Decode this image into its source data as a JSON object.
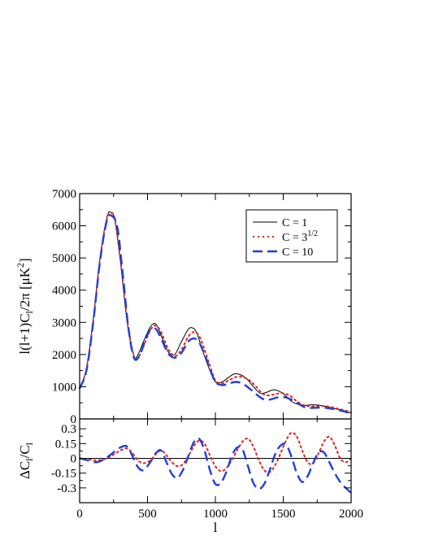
{
  "chart_data": [
    {
      "type": "line",
      "panel": "top",
      "xlabel": "",
      "ylabel_base": "l(l+1)C",
      "ylabel_sub": "l",
      "ylabel_rest": "/2π [μK",
      "ylabel_sup": "2",
      "ylabel_close": "]",
      "xlim": [
        0,
        2000
      ],
      "ylim": [
        0,
        7000
      ],
      "xticks": [
        0,
        500,
        1000,
        1500,
        2000
      ],
      "yticks": [
        0,
        1000,
        2000,
        3000,
        4000,
        5000,
        6000,
        7000
      ],
      "legend_position": "top-right",
      "series": [
        {
          "name": "C = 1",
          "color": "#000000",
          "style": "solid",
          "x": [
            0,
            50,
            100,
            150,
            200,
            230,
            260,
            300,
            350,
            400,
            430,
            470,
            520,
            560,
            600,
            650,
            700,
            750,
            800,
            830,
            860,
            900,
            950,
            1000,
            1050,
            1100,
            1140,
            1180,
            1230,
            1280,
            1330,
            1380,
            1420,
            1460,
            1510,
            1560,
            1610,
            1660,
            1710,
            1760,
            1800,
            1850,
            1900,
            1950,
            2000
          ],
          "y": [
            950,
            1550,
            3100,
            5000,
            6250,
            6420,
            6150,
            4900,
            3000,
            1950,
            2000,
            2400,
            2850,
            2950,
            2600,
            2100,
            2000,
            2400,
            2780,
            2830,
            2700,
            2200,
            1600,
            1150,
            1150,
            1300,
            1400,
            1380,
            1250,
            1000,
            800,
            830,
            900,
            880,
            750,
            550,
            450,
            420,
            440,
            430,
            400,
            350,
            300,
            250,
            180
          ]
        },
        {
          "name": "C = 3",
          "name_sup": "1/2",
          "color": "#e0241b",
          "style": "dotted",
          "x": [
            0,
            50,
            100,
            150,
            200,
            230,
            260,
            300,
            350,
            400,
            430,
            470,
            520,
            560,
            600,
            650,
            700,
            750,
            800,
            840,
            880,
            920,
            960,
            1000,
            1050,
            1100,
            1150,
            1200,
            1250,
            1300,
            1350,
            1400,
            1450,
            1500,
            1550,
            1600,
            1650,
            1700,
            1750,
            1800,
            1850,
            1900,
            1950,
            2000
          ],
          "y": [
            950,
            1550,
            3050,
            4950,
            6200,
            6400,
            6200,
            5000,
            3100,
            1950,
            1900,
            2250,
            2750,
            2900,
            2700,
            2200,
            1950,
            2150,
            2550,
            2700,
            2580,
            2150,
            1650,
            1200,
            1100,
            1200,
            1300,
            1300,
            1200,
            1000,
            780,
            730,
            780,
            800,
            720,
            550,
            430,
            390,
            400,
            400,
            370,
            320,
            270,
            200
          ]
        },
        {
          "name": "C = 10",
          "color": "#1f3fe0",
          "style": "dashed",
          "x": [
            0,
            50,
            100,
            150,
            200,
            240,
            280,
            320,
            360,
            400,
            440,
            480,
            520,
            560,
            600,
            650,
            700,
            750,
            800,
            840,
            880,
            920,
            960,
            1000,
            1050,
            1100,
            1150,
            1200,
            1250,
            1300,
            1350,
            1400,
            1450,
            1500,
            1550,
            1600,
            1650,
            1700,
            1750,
            1800,
            1850,
            1900,
            1950,
            2000
          ],
          "y": [
            950,
            1500,
            3000,
            4900,
            6150,
            6300,
            5900,
            4400,
            2800,
            1900,
            1950,
            2400,
            2780,
            2800,
            2500,
            2050,
            1900,
            2050,
            2400,
            2500,
            2380,
            2000,
            1550,
            1150,
            1050,
            1100,
            1150,
            1100,
            950,
            770,
            620,
            600,
            660,
            680,
            620,
            500,
            380,
            340,
            350,
            350,
            320,
            280,
            230,
            170
          ]
        }
      ]
    },
    {
      "type": "line",
      "panel": "bottom",
      "xlabel": "l",
      "ylabel_base": "ΔC",
      "ylabel_sub": "l",
      "ylabel_rest": "/C",
      "ylabel_sub2": "l",
      "xlim": [
        0,
        2000
      ],
      "ylim": [
        -0.45,
        0.4
      ],
      "xticks": [
        0,
        500,
        1000,
        1500,
        2000
      ],
      "yticks": [
        -0.3,
        -0.15,
        0,
        0.15,
        0.3
      ],
      "ytick_labels": [
        "-0.3",
        "-0.15",
        "0",
        "0.15",
        "0.3"
      ],
      "zero_line": true,
      "series": [
        {
          "name": "C = 3",
          "name_sup": "1/2",
          "color": "#e0241b",
          "style": "dotted",
          "x": [
            0,
            60,
            120,
            180,
            240,
            300,
            350,
            390,
            430,
            470,
            520,
            560,
            600,
            640,
            680,
            720,
            760,
            800,
            840,
            880,
            920,
            960,
            1000,
            1040,
            1080,
            1120,
            1160,
            1200,
            1240,
            1280,
            1320,
            1360,
            1400,
            1440,
            1480,
            1520,
            1560,
            1600,
            1640,
            1680,
            1720,
            1760,
            1800,
            1840,
            1880,
            1920,
            1960,
            2000
          ],
          "y": [
            0,
            -0.01,
            -0.02,
            -0.01,
            0.03,
            0.08,
            0.1,
            0.05,
            -0.02,
            -0.05,
            -0.02,
            0.04,
            0.08,
            0.03,
            -0.04,
            -0.08,
            -0.06,
            0.02,
            0.12,
            0.18,
            0.15,
            0.03,
            -0.08,
            -0.13,
            -0.1,
            -0.02,
            0.08,
            0.17,
            0.2,
            0.12,
            -0.02,
            -0.12,
            -0.14,
            -0.07,
            0.05,
            0.18,
            0.26,
            0.22,
            0.08,
            -0.04,
            -0.05,
            0.05,
            0.17,
            0.22,
            0.13,
            0.0,
            -0.04,
            0.0
          ]
        },
        {
          "name": "C = 10",
          "color": "#1f3fe0",
          "style": "dashed",
          "x": [
            0,
            60,
            120,
            180,
            240,
            300,
            350,
            390,
            430,
            470,
            520,
            560,
            600,
            640,
            680,
            720,
            760,
            800,
            840,
            880,
            920,
            960,
            1000,
            1040,
            1080,
            1120,
            1160,
            1200,
            1240,
            1280,
            1320,
            1360,
            1400,
            1440,
            1480,
            1520,
            1560,
            1600,
            1640,
            1680,
            1720,
            1760,
            1800,
            1840,
            1880,
            1920,
            1960,
            2000
          ],
          "y": [
            0,
            -0.02,
            -0.04,
            -0.01,
            0.05,
            0.11,
            0.12,
            0.02,
            -0.09,
            -0.12,
            -0.04,
            0.05,
            0.08,
            -0.04,
            -0.16,
            -0.2,
            -0.12,
            0.02,
            0.16,
            0.2,
            0.08,
            -0.12,
            -0.26,
            -0.25,
            -0.14,
            0.02,
            0.11,
            0.09,
            -0.08,
            -0.25,
            -0.31,
            -0.26,
            -0.12,
            0.04,
            0.13,
            0.14,
            0.02,
            -0.15,
            -0.24,
            -0.18,
            -0.05,
            0.06,
            0.06,
            -0.04,
            -0.15,
            -0.24,
            -0.3,
            -0.35
          ]
        },
        {
          "name": "C = 1",
          "color": "#000000",
          "style": "solid",
          "x": [
            0,
            2000
          ],
          "y": [
            0,
            0
          ]
        }
      ]
    }
  ]
}
